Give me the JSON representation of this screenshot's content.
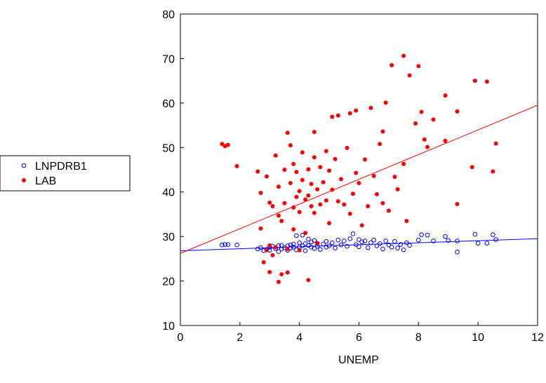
{
  "chart_data": {
    "type": "scatter",
    "title": "",
    "xlabel": "UNEMP",
    "ylabel": "",
    "xlim": [
      0,
      12
    ],
    "ylim": [
      10,
      80
    ],
    "xticks": [
      "0",
      "2",
      "4",
      "6",
      "8",
      "10",
      "12"
    ],
    "yticks": [
      "10",
      "20",
      "30",
      "40",
      "50",
      "60",
      "70",
      "80"
    ],
    "grid": false,
    "legend_position": "left",
    "series": [
      {
        "name": "LNPDRB1",
        "marker": "open-circle",
        "color": "#0000ff",
        "fit_line": {
          "x": [
            0,
            12
          ],
          "y": [
            26.8,
            29.5
          ]
        },
        "points": [
          [
            1.4,
            28.1
          ],
          [
            1.5,
            28.2
          ],
          [
            1.6,
            28.2
          ],
          [
            1.9,
            28.1
          ],
          [
            2.6,
            27.2
          ],
          [
            2.7,
            27.5
          ],
          [
            2.8,
            26.8
          ],
          [
            2.9,
            27.1
          ],
          [
            3.0,
            26.9
          ],
          [
            3.0,
            27.6
          ],
          [
            3.1,
            27.8
          ],
          [
            3.2,
            27.3
          ],
          [
            3.3,
            27.9
          ],
          [
            3.3,
            26.6
          ],
          [
            3.4,
            28.0
          ],
          [
            3.4,
            27.2
          ],
          [
            3.5,
            27.5
          ],
          [
            3.6,
            27.9
          ],
          [
            3.6,
            26.9
          ],
          [
            3.7,
            28.1
          ],
          [
            3.7,
            27.4
          ],
          [
            3.8,
            27.6
          ],
          [
            3.8,
            28.3
          ],
          [
            3.9,
            27.0
          ],
          [
            3.9,
            30.2
          ],
          [
            4.0,
            27.7
          ],
          [
            4.0,
            28.6
          ],
          [
            4.1,
            27.9
          ],
          [
            4.1,
            30.3
          ],
          [
            4.2,
            28.4
          ],
          [
            4.2,
            26.8
          ],
          [
            4.3,
            28.0
          ],
          [
            4.3,
            29.4
          ],
          [
            4.4,
            27.6
          ],
          [
            4.4,
            28.8
          ],
          [
            4.5,
            29.1
          ],
          [
            4.5,
            27.3
          ],
          [
            4.6,
            28.5
          ],
          [
            4.6,
            27.8
          ],
          [
            4.7,
            27.1
          ],
          [
            4.8,
            28.3
          ],
          [
            4.9,
            27.6
          ],
          [
            4.9,
            28.9
          ],
          [
            5.0,
            27.9
          ],
          [
            5.1,
            28.6
          ],
          [
            5.2,
            27.4
          ],
          [
            5.3,
            29.2
          ],
          [
            5.4,
            28.1
          ],
          [
            5.5,
            29.0
          ],
          [
            5.6,
            27.8
          ],
          [
            5.7,
            29.5
          ],
          [
            5.8,
            30.6
          ],
          [
            5.9,
            28.2
          ],
          [
            6.0,
            29.3
          ],
          [
            6.0,
            27.7
          ],
          [
            6.1,
            28.8
          ],
          [
            6.2,
            29.0
          ],
          [
            6.3,
            27.5
          ],
          [
            6.4,
            28.6
          ],
          [
            6.5,
            29.2
          ],
          [
            6.6,
            27.9
          ],
          [
            6.7,
            28.4
          ],
          [
            6.8,
            27.2
          ],
          [
            6.9,
            29.0
          ],
          [
            7.0,
            28.1
          ],
          [
            7.1,
            27.6
          ],
          [
            7.2,
            28.9
          ],
          [
            7.3,
            27.4
          ],
          [
            7.4,
            28.2
          ],
          [
            7.5,
            27.0
          ],
          [
            7.6,
            28.6
          ],
          [
            7.7,
            28.0
          ],
          [
            8.0,
            29.2
          ],
          [
            8.1,
            30.4
          ],
          [
            8.3,
            30.3
          ],
          [
            8.5,
            29.0
          ],
          [
            8.9,
            30.0
          ],
          [
            9.0,
            29.1
          ],
          [
            9.3,
            26.5
          ],
          [
            9.3,
            29.0
          ],
          [
            9.9,
            30.5
          ],
          [
            10.0,
            28.5
          ],
          [
            10.3,
            28.5
          ],
          [
            10.5,
            30.4
          ],
          [
            10.6,
            29.3
          ]
        ]
      },
      {
        "name": "LAB",
        "marker": "filled-circle",
        "color": "#ff0000",
        "fit_line": {
          "x": [
            0,
            12
          ],
          "y": [
            26.2,
            59.5
          ]
        },
        "points": [
          [
            1.4,
            50.8
          ],
          [
            1.5,
            50.3
          ],
          [
            1.6,
            50.6
          ],
          [
            1.9,
            45.8
          ],
          [
            2.6,
            44.6
          ],
          [
            2.7,
            39.8
          ],
          [
            2.7,
            31.8
          ],
          [
            2.8,
            24.2
          ],
          [
            2.9,
            26.9
          ],
          [
            2.9,
            43.5
          ],
          [
            3.0,
            37.6
          ],
          [
            3.0,
            22.0
          ],
          [
            3.0,
            28.0
          ],
          [
            3.1,
            36.8
          ],
          [
            3.1,
            25.8
          ],
          [
            3.2,
            48.2
          ],
          [
            3.2,
            27.6
          ],
          [
            3.3,
            34.7
          ],
          [
            3.3,
            19.8
          ],
          [
            3.3,
            41.2
          ],
          [
            3.4,
            21.5
          ],
          [
            3.4,
            33.5
          ],
          [
            3.5,
            37.5
          ],
          [
            3.5,
            45.0
          ],
          [
            3.6,
            53.3
          ],
          [
            3.6,
            27.2
          ],
          [
            3.6,
            21.9
          ],
          [
            3.7,
            42.0
          ],
          [
            3.7,
            50.5
          ],
          [
            3.8,
            36.5
          ],
          [
            3.8,
            31.6
          ],
          [
            3.8,
            46.3
          ],
          [
            3.9,
            38.9
          ],
          [
            3.9,
            44.5
          ],
          [
            4.0,
            40.2
          ],
          [
            4.0,
            26.9
          ],
          [
            4.0,
            35.5
          ],
          [
            4.1,
            48.9
          ],
          [
            4.1,
            42.7
          ],
          [
            4.2,
            38.3
          ],
          [
            4.2,
            30.8
          ],
          [
            4.3,
            39.2
          ],
          [
            4.3,
            20.2
          ],
          [
            4.3,
            45.1
          ],
          [
            4.4,
            36.8
          ],
          [
            4.4,
            41.8
          ],
          [
            4.5,
            53.5
          ],
          [
            4.5,
            47.8
          ],
          [
            4.5,
            35.3
          ],
          [
            4.6,
            40.6
          ],
          [
            4.6,
            28.5
          ],
          [
            4.7,
            37.2
          ],
          [
            4.7,
            45.6
          ],
          [
            4.8,
            42.2
          ],
          [
            4.9,
            49.2
          ],
          [
            4.9,
            38.1
          ],
          [
            5.0,
            44.8
          ],
          [
            5.0,
            33.0
          ],
          [
            5.1,
            56.9
          ],
          [
            5.1,
            40.5
          ],
          [
            5.2,
            47.4
          ],
          [
            5.3,
            37.9
          ],
          [
            5.3,
            57.2
          ],
          [
            5.4,
            42.9
          ],
          [
            5.5,
            37.2
          ],
          [
            5.6,
            49.9
          ],
          [
            5.7,
            35.1
          ],
          [
            5.7,
            57.7
          ],
          [
            5.8,
            39.6
          ],
          [
            5.9,
            44.3
          ],
          [
            5.9,
            58.3
          ],
          [
            6.0,
            42.0
          ],
          [
            6.1,
            32.5
          ],
          [
            6.2,
            47.3
          ],
          [
            6.3,
            36.8
          ],
          [
            6.4,
            58.9
          ],
          [
            6.5,
            43.6
          ],
          [
            6.6,
            39.5
          ],
          [
            6.7,
            50.8
          ],
          [
            6.8,
            37.5
          ],
          [
            6.8,
            53.6
          ],
          [
            6.9,
            60.1
          ],
          [
            7.0,
            35.8
          ],
          [
            7.1,
            68.5
          ],
          [
            7.2,
            43.4
          ],
          [
            7.3,
            40.6
          ],
          [
            7.5,
            46.3
          ],
          [
            7.5,
            70.6
          ],
          [
            7.6,
            33.5
          ],
          [
            7.7,
            66.2
          ],
          [
            7.9,
            55.4
          ],
          [
            8.0,
            68.3
          ],
          [
            8.1,
            58.0
          ],
          [
            8.2,
            51.8
          ],
          [
            8.3,
            50.1
          ],
          [
            8.5,
            56.3
          ],
          [
            8.9,
            51.5
          ],
          [
            8.9,
            61.7
          ],
          [
            9.3,
            37.3
          ],
          [
            9.3,
            58.1
          ],
          [
            9.8,
            45.6
          ],
          [
            9.9,
            65.0
          ],
          [
            10.3,
            64.8
          ],
          [
            10.5,
            44.6
          ],
          [
            10.6,
            50.9
          ]
        ]
      }
    ]
  }
}
